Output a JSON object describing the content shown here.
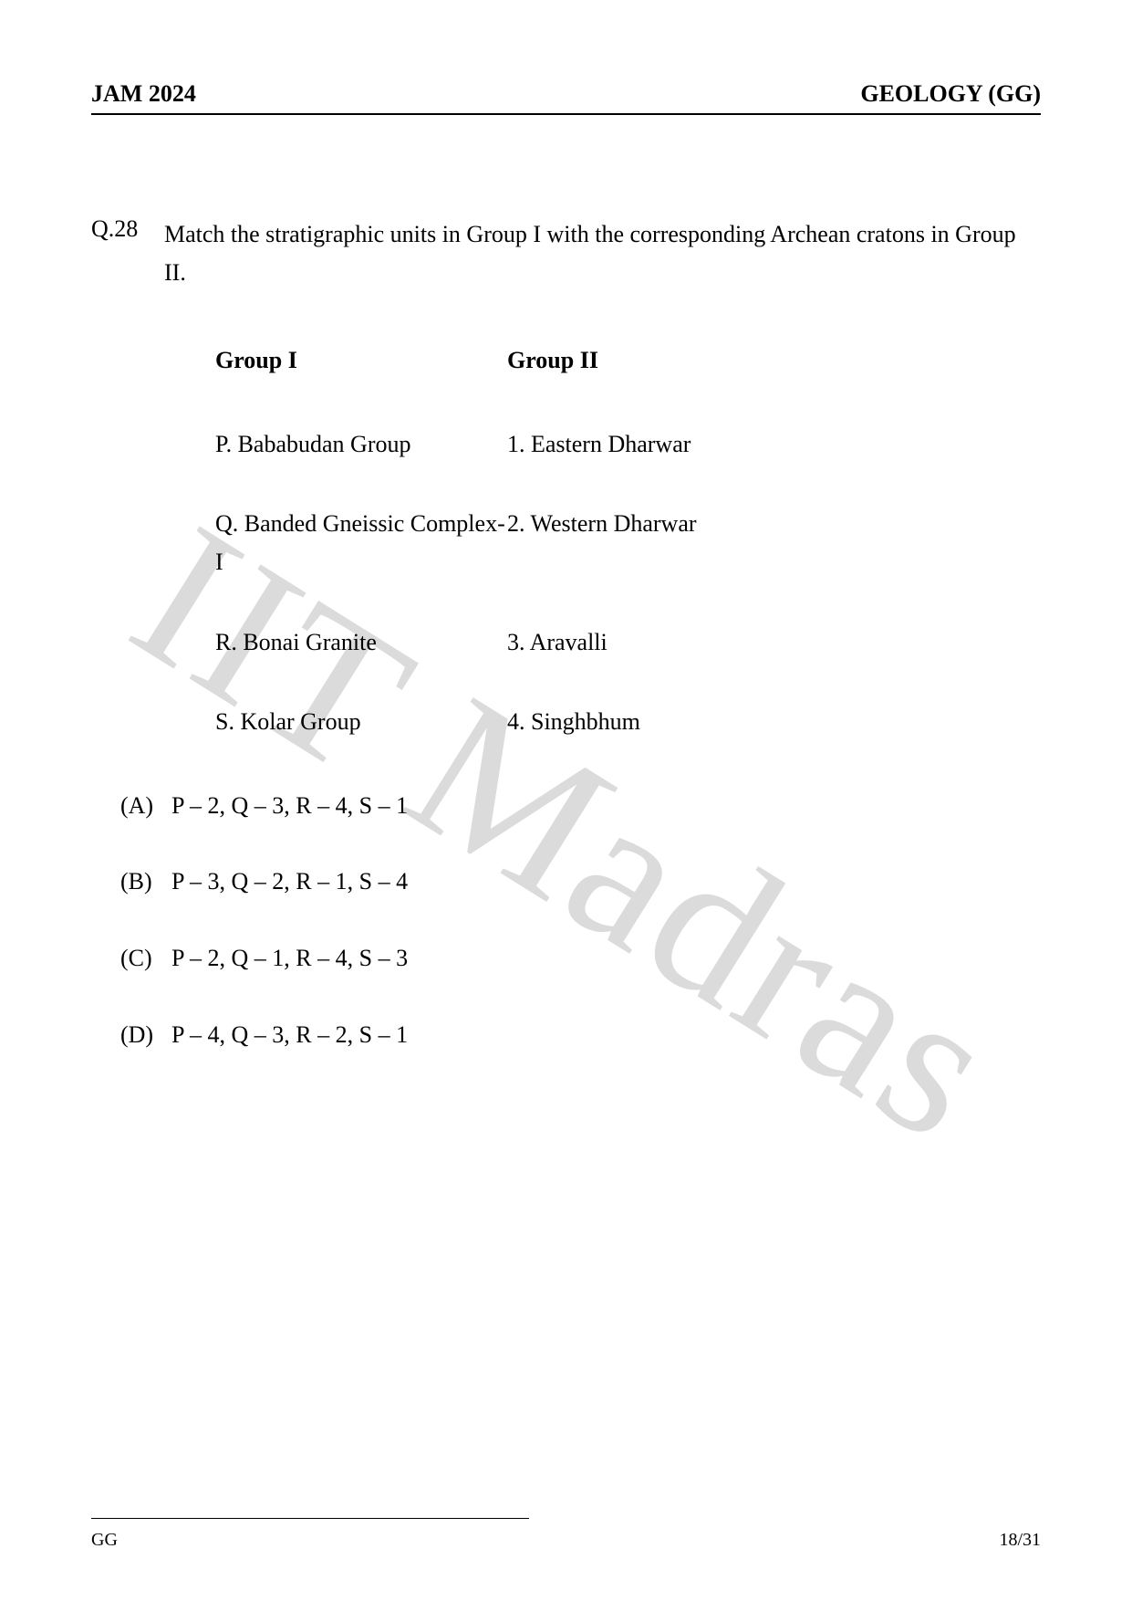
{
  "header": {
    "left": "JAM 2024",
    "right": "GEOLOGY (GG)"
  },
  "watermark": "IIT Madras",
  "question": {
    "number": "Q.28",
    "stem": "Match the stratigraphic units in Group I with the corresponding Archean cratons in Group II.",
    "group1_header": "Group I",
    "group2_header": "Group II",
    "rows": [
      {
        "g1": "P. Bababudan Group",
        "g2": "1. Eastern Dharwar"
      },
      {
        "g1": "Q. Banded Gneissic Complex-I",
        "g2": "2. Western Dharwar"
      },
      {
        "g1": "R. Bonai Granite",
        "g2": "3. Aravalli"
      },
      {
        "g1": "S. Kolar Group",
        "g2": "4. Singhbhum"
      }
    ],
    "options": [
      {
        "label": "(A)",
        "text": "P – 2, Q – 3, R – 4, S – 1"
      },
      {
        "label": "(B)",
        "text": "P – 3, Q – 2, R – 1, S – 4"
      },
      {
        "label": "(C)",
        "text": "P – 2, Q – 1, R – 4, S – 3"
      },
      {
        "label": "(D)",
        "text": "P – 4, Q – 3, R – 2, S – 1"
      }
    ]
  },
  "footer": {
    "left": "GG",
    "right": "18/31"
  },
  "colors": {
    "text": "#000000",
    "background": "#ffffff",
    "watermark": "#bfbfbf"
  },
  "typography": {
    "body_fontsize": 26,
    "footer_fontsize": 20,
    "watermark_fontsize": 225,
    "font_family": "Times New Roman"
  }
}
